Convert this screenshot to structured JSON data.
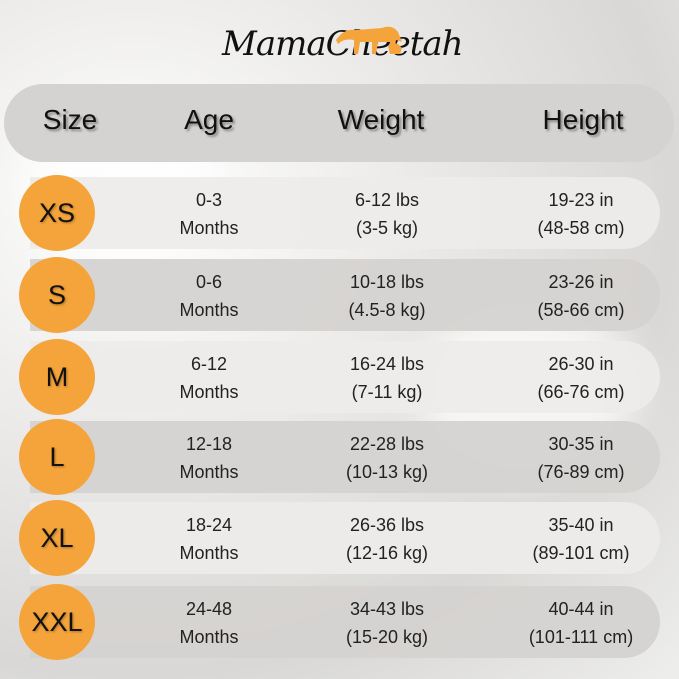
{
  "brand": {
    "name": "MamaCheetah",
    "accent_color": "#f4a43a"
  },
  "header": {
    "columns": [
      "Size",
      "Age",
      "Weight",
      "Height"
    ]
  },
  "rows": [
    {
      "size": "XS",
      "age": [
        "0-3",
        "Months"
      ],
      "weight": [
        "6-12 lbs",
        "(3-5 kg)"
      ],
      "height": [
        "19-23 in",
        "(48-58 cm)"
      ]
    },
    {
      "size": "S",
      "age": [
        "0-6",
        "Months"
      ],
      "weight": [
        "10-18 lbs",
        "(4.5-8 kg)"
      ],
      "height": [
        "23-26 in",
        "(58-66 cm)"
      ]
    },
    {
      "size": "M",
      "age": [
        "6-12",
        "Months"
      ],
      "weight": [
        "16-24 lbs",
        "(7-11 kg)"
      ],
      "height": [
        "26-30 in",
        "(66-76 cm)"
      ]
    },
    {
      "size": "L",
      "age": [
        "12-18",
        "Months"
      ],
      "weight": [
        "22-28 lbs",
        "(10-13 kg)"
      ],
      "height": [
        "30-35 in",
        "(76-89 cm)"
      ]
    },
    {
      "size": "XL",
      "age": [
        "18-24",
        "Months"
      ],
      "weight": [
        "26-36 lbs",
        "(12-16 kg)"
      ],
      "height": [
        "35-40 in",
        "(89-101 cm)"
      ]
    },
    {
      "size": "XXL",
      "age": [
        "24-48",
        "Months"
      ],
      "weight": [
        "34-43 lbs",
        "(15-20 kg)"
      ],
      "height": [
        "40-44 in",
        "(101-111 cm)"
      ]
    }
  ]
}
